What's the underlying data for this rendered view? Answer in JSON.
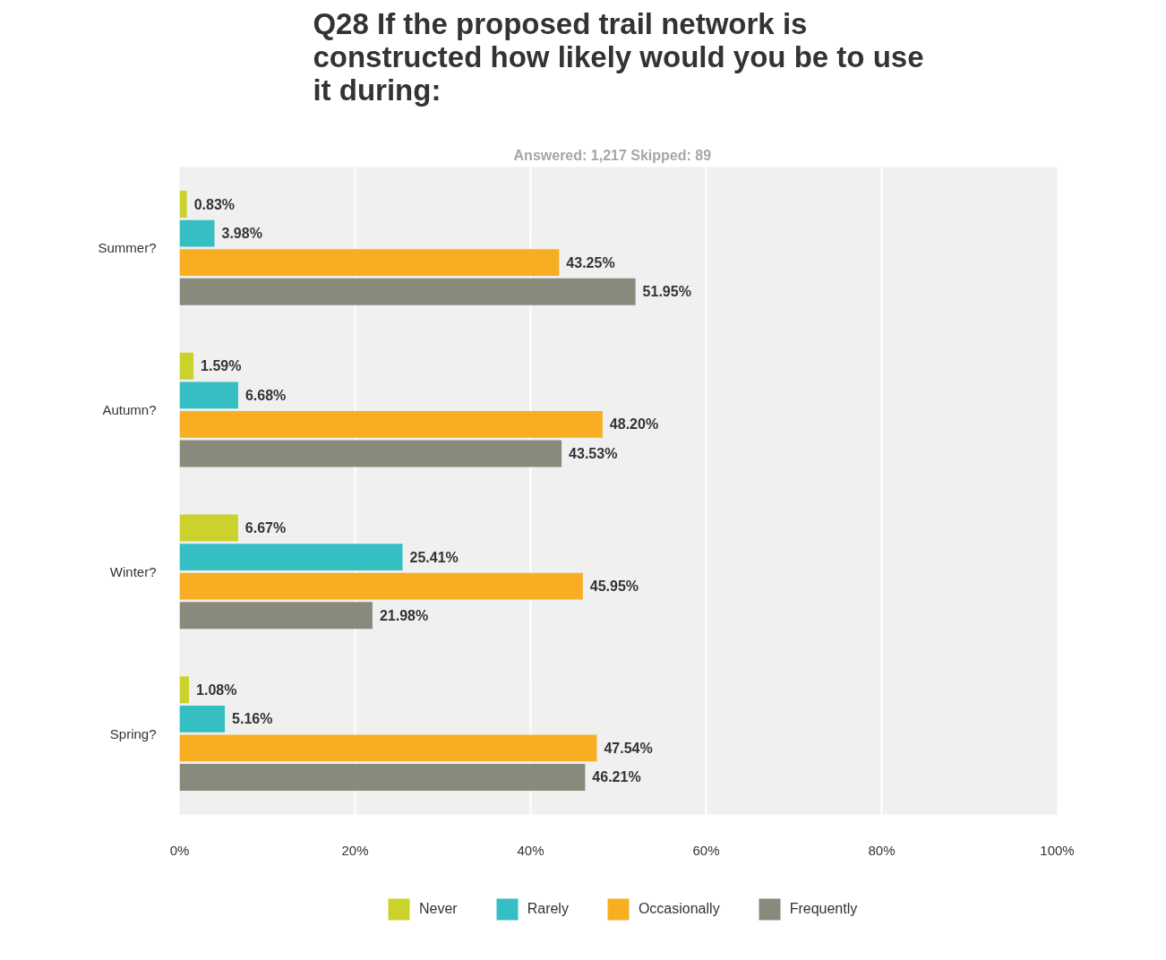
{
  "chart_data": {
    "type": "bar",
    "orientation": "horizontal",
    "title": "Q28 If the proposed trail network is constructed how likely would you be to use it during:",
    "subtitle": "Answered: 1,217    Skipped: 89",
    "categories": [
      "Summer?",
      "Autumn?",
      "Winter?",
      "Spring?"
    ],
    "series": [
      {
        "name": "Never",
        "color": "#ccd22c",
        "values": [
          0.83,
          1.59,
          6.67,
          1.08
        ],
        "value_labels": [
          "0.83%",
          "1.59%",
          "6.67%",
          "1.08%"
        ]
      },
      {
        "name": "Rarely",
        "color": "#35bfc2",
        "values": [
          3.98,
          6.68,
          25.41,
          5.16
        ],
        "value_labels": [
          "3.98%",
          "6.68%",
          "25.41%",
          "5.16%"
        ]
      },
      {
        "name": "Occasionally",
        "color": "#f7ae23",
        "values": [
          43.25,
          48.2,
          45.95,
          47.54
        ],
        "value_labels": [
          "43.25%",
          "48.20%",
          "45.95%",
          "47.54%"
        ]
      },
      {
        "name": "Frequently",
        "color": "#8a8a7c",
        "values": [
          51.95,
          43.53,
          21.98,
          46.21
        ],
        "value_labels": [
          "51.95%",
          "43.53%",
          "21.98%",
          "46.21%"
        ]
      }
    ],
    "xlim": [
      0,
      100
    ],
    "xticks": [
      {
        "value": 0,
        "label": "0%"
      },
      {
        "value": 20,
        "label": "20%"
      },
      {
        "value": 40,
        "label": "40%"
      },
      {
        "value": 60,
        "label": "60%"
      },
      {
        "value": 80,
        "label": "80%"
      },
      {
        "value": 100,
        "label": "100%"
      }
    ],
    "grid": "x",
    "legend": "bottom"
  }
}
